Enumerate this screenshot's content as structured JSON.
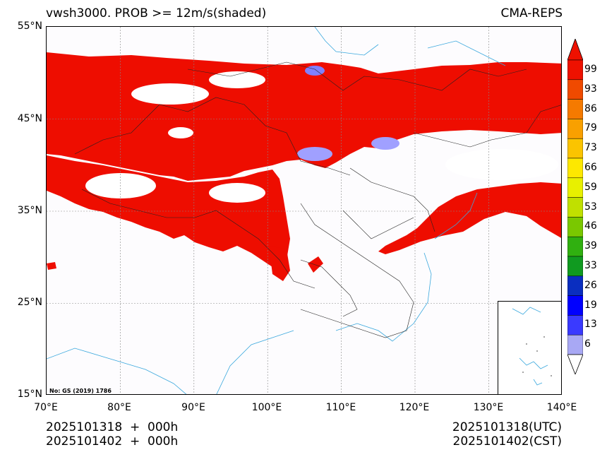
{
  "title": {
    "left": "vwsh3000. PROB >= 12m/s(shaded)",
    "right": "CMA-REPS"
  },
  "axes": {
    "lat_ticks": [
      "55°N",
      "45°N",
      "35°N",
      "25°N",
      "15°N"
    ],
    "lon_ticks": [
      "70°E",
      "80°E",
      "90°E",
      "100°E",
      "110°E",
      "120°E",
      "130°E",
      "140°E"
    ]
  },
  "footer": {
    "left_line1": "2025101318  +  000h",
    "left_line2": "2025101402  +  000h",
    "right_line1": "2025101318(UTC)",
    "right_line2": "2025101402(CST)"
  },
  "credit": "No: GS (2019) 1786",
  "colorbar": {
    "levels": [
      "99",
      "93",
      "86",
      "79",
      "73",
      "66",
      "59",
      "53",
      "46",
      "39",
      "33",
      "26",
      "19",
      "13",
      "6"
    ],
    "colors": [
      "#ee1100",
      "#f04a00",
      "#f57a00",
      "#f9a000",
      "#fbc400",
      "#fde800",
      "#e8f000",
      "#c0e000",
      "#7ac800",
      "#30b010",
      "#109a20",
      "#0a2ec0",
      "#0000ff",
      "#3a3aff",
      "#a8a8f4"
    ]
  },
  "colors": {
    "shade_main": "#ee0d00",
    "coast": "#3aa8dd",
    "border": "#000000"
  }
}
